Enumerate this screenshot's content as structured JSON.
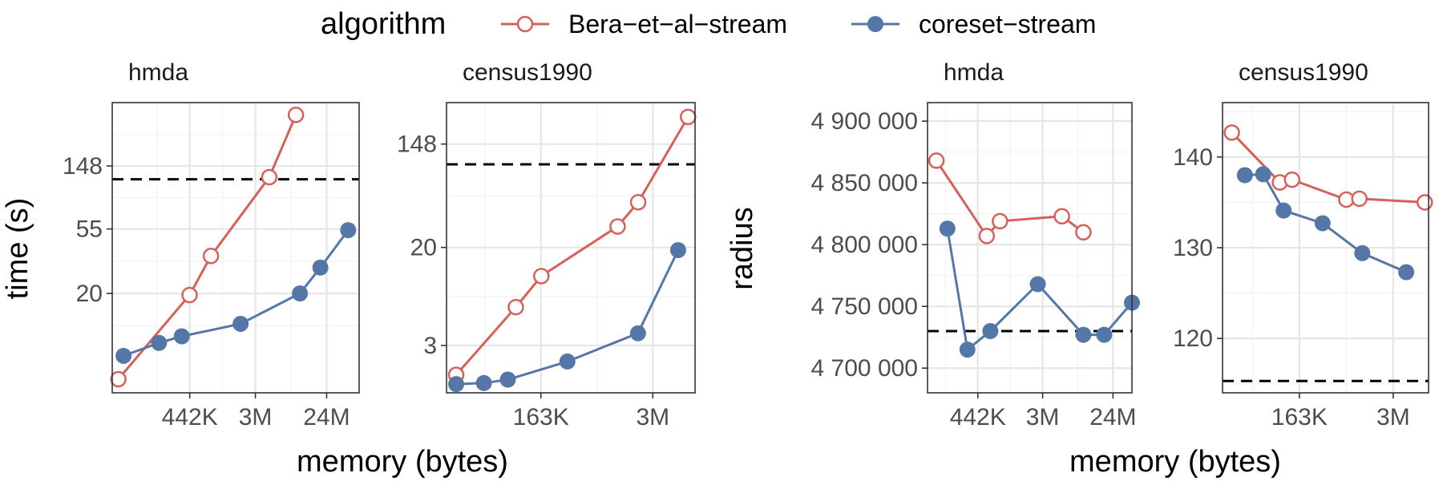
{
  "colors": {
    "bera": "#d6605a",
    "coreset": "#5577a8"
  },
  "legend": {
    "title": "algorithm",
    "items": [
      {
        "label": "Bera−et−al−stream",
        "series": "bera",
        "marker": "hollow-circle"
      },
      {
        "label": "coreset−stream",
        "series": "coreset",
        "marker": "filled-circle"
      }
    ]
  },
  "chart_data": [
    {
      "type": "line",
      "group": "left",
      "strip": "hmda",
      "x_scale": "log",
      "y_scale": "log",
      "xlim": [
        46000,
        62000000
      ],
      "ylim": [
        4.2,
        400
      ],
      "x_ticks": [
        {
          "value": 442000,
          "label": "442K"
        },
        {
          "value": 3000000,
          "label": "3M"
        },
        {
          "value": 24000000,
          "label": "24M"
        }
      ],
      "y_ticks": [
        {
          "value": 20,
          "label": "20"
        },
        {
          "value": 55,
          "label": "55"
        },
        {
          "value": 148,
          "label": "148"
        }
      ],
      "reference_y": 120,
      "series": [
        {
          "key": "bera",
          "marker": "hollow",
          "points": [
            [
              55000,
              5.2
            ],
            [
              440000,
              19.5
            ],
            [
              820000,
              36
            ],
            [
              4500000,
              124
            ],
            [
              9800000,
              330
            ]
          ]
        },
        {
          "key": "coreset",
          "marker": "filled",
          "points": [
            [
              64000,
              7.5
            ],
            [
              180000,
              9.2
            ],
            [
              350000,
              10.2
            ],
            [
              1950000,
              12.4
            ],
            [
              11000000,
              20
            ],
            [
              20000000,
              30
            ],
            [
              45000000,
              54
            ]
          ]
        }
      ]
    },
    {
      "type": "line",
      "group": "left",
      "strip": "census1990",
      "x_scale": "log",
      "y_scale": "log",
      "xlim": [
        14000,
        9000000
      ],
      "ylim": [
        1.2,
        330
      ],
      "x_ticks": [
        {
          "value": 163000,
          "label": "163K"
        },
        {
          "value": 3000000,
          "label": "3M"
        }
      ],
      "y_ticks": [
        {
          "value": 3,
          "label": "3"
        },
        {
          "value": 20,
          "label": "20"
        },
        {
          "value": 148,
          "label": "148"
        }
      ],
      "reference_y": 100,
      "series": [
        {
          "key": "bera",
          "marker": "hollow",
          "points": [
            [
              18000,
              1.7
            ],
            [
              85000,
              6.3
            ],
            [
              165000,
              11.5
            ],
            [
              1200000,
              30
            ],
            [
              2050000,
              48
            ],
            [
              7500000,
              250
            ]
          ]
        },
        {
          "key": "coreset",
          "marker": "filled",
          "points": [
            [
              18000,
              1.42
            ],
            [
              37000,
              1.45
            ],
            [
              69000,
              1.55
            ],
            [
              325000,
              2.2
            ],
            [
              2040000,
              3.8
            ],
            [
              5800000,
              19
            ]
          ]
        }
      ]
    },
    {
      "type": "line",
      "group": "right",
      "strip": "hmda",
      "x_scale": "log",
      "y_scale": "linear",
      "xlim": [
        100000,
        42000000
      ],
      "ylim": [
        4680000,
        4915000
      ],
      "x_ticks": [
        {
          "value": 442000,
          "label": "442K"
        },
        {
          "value": 3000000,
          "label": "3M"
        },
        {
          "value": 24000000,
          "label": "24M"
        }
      ],
      "y_ticks": [
        {
          "value": 4700000,
          "label": "4 700 000"
        },
        {
          "value": 4750000,
          "label": "4 750 000"
        },
        {
          "value": 4800000,
          "label": "4 800 000"
        },
        {
          "value": 4850000,
          "label": "4 850 000"
        },
        {
          "value": 4900000,
          "label": "4 900 000"
        }
      ],
      "reference_y": 4730000,
      "series": [
        {
          "key": "bera",
          "marker": "hollow",
          "points": [
            [
              130000,
              4868000
            ],
            [
              575000,
              4807000
            ],
            [
              850000,
              4819000
            ],
            [
              5300000,
              4823000
            ],
            [
              10000000,
              4810000
            ]
          ]
        },
        {
          "key": "coreset",
          "marker": "filled",
          "points": [
            [
              180000,
              4813000
            ],
            [
              325000,
              4715000
            ],
            [
              640000,
              4730000
            ],
            [
              2600000,
              4768000
            ],
            [
              10000000,
              4727000
            ],
            [
              18500000,
              4727000
            ],
            [
              42000000,
              4753000
            ]
          ]
        }
      ]
    },
    {
      "type": "line",
      "group": "right",
      "strip": "census1990",
      "x_scale": "log",
      "y_scale": "linear",
      "xlim": [
        15000,
        9000000
      ],
      "ylim": [
        114000,
        146000
      ],
      "x_ticks": [
        {
          "value": 163000,
          "label": "163K"
        },
        {
          "value": 3000000,
          "label": "3M"
        }
      ],
      "y_ticks": [
        {
          "value": 120000,
          "label": "120"
        },
        {
          "value": 130000,
          "label": "130"
        },
        {
          "value": 140000,
          "label": "140"
        }
      ],
      "reference_y": 115300,
      "series": [
        {
          "key": "bera",
          "marker": "hollow",
          "points": [
            [
              20000,
              142700
            ],
            [
              89000,
              137200
            ],
            [
              130000,
              137500
            ],
            [
              700000,
              135300
            ],
            [
              1050000,
              135400
            ],
            [
              8000000,
              135000
            ]
          ]
        },
        {
          "key": "coreset",
          "marker": "filled",
          "points": [
            [
              30000,
              138000
            ],
            [
              53000,
              138100
            ],
            [
              100000,
              134100
            ],
            [
              335000,
              132700
            ],
            [
              1150000,
              129400
            ],
            [
              4500000,
              127300
            ]
          ]
        }
      ]
    }
  ],
  "axes": {
    "left_ylabel": "time (s)",
    "right_ylabel": "radius",
    "left_xlabel": "memory (bytes)",
    "right_xlabel": "memory (bytes)"
  }
}
